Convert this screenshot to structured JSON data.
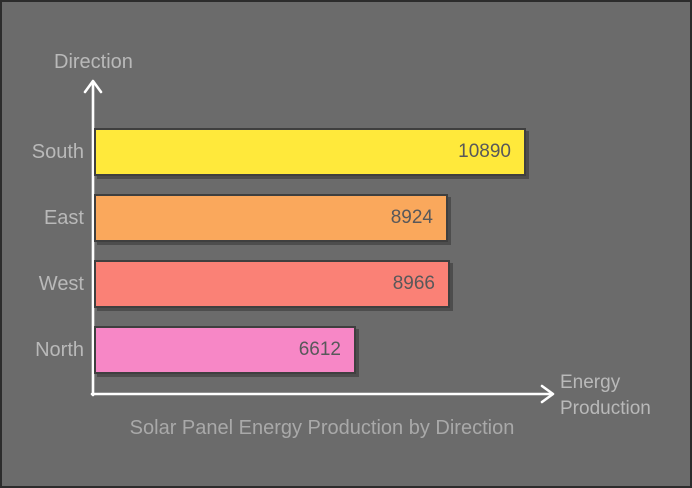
{
  "chart_data": {
    "type": "bar",
    "orientation": "horizontal",
    "title": "Solar Panel Energy Production by Direction",
    "xlabel": "Energy Production",
    "ylabel": "Direction",
    "categories": [
      "South",
      "East",
      "West",
      "North"
    ],
    "values": [
      10890,
      8924,
      8966,
      6612
    ],
    "bar_colors": [
      "#ffe93b",
      "#faa85c",
      "#fa8176",
      "#f787c6"
    ],
    "value_labels": [
      "10890",
      "8924",
      "8966",
      "6612"
    ],
    "xlim": [
      0,
      10890
    ],
    "grid": false,
    "legend": "none"
  },
  "colors": {
    "background": "#6b6b6b",
    "frame_border": "#2c2c2c",
    "axis_line": "#ffffff",
    "bar_border": "#3f3f3f",
    "value_text": "#58585a",
    "category_text": "#b9b9b9",
    "title_text": "#a9a9a9"
  }
}
